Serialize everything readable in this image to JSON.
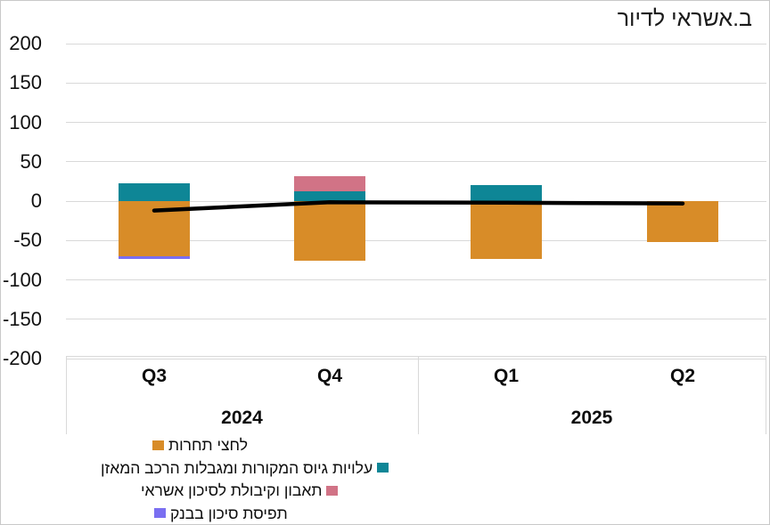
{
  "chart_data": {
    "type": "bar",
    "stacked": true,
    "title": "ב.אשראי לדיור",
    "categories": [
      "Q3",
      "Q4",
      "Q1",
      "Q2"
    ],
    "year_groups": [
      {
        "label": "2024",
        "categories": [
          "Q3",
          "Q4"
        ]
      },
      {
        "label": "2025",
        "categories": [
          "Q1",
          "Q2"
        ]
      }
    ],
    "ylim": [
      -200,
      200
    ],
    "ytick_step": 50,
    "yticks": [
      200,
      150,
      100,
      50,
      0,
      -50,
      -100,
      -150,
      -200
    ],
    "grid": true,
    "legend_position": "bottom-left",
    "series": [
      {
        "name": "לחצי תחרות",
        "color": "#D88C28",
        "values": [
          -70,
          -76,
          -74,
          -52
        ]
      },
      {
        "name": "עלויות גיוס המקורות ומגבלות הרכב המאזן",
        "color": "#0E8696",
        "values": [
          23,
          12,
          20,
          0
        ]
      },
      {
        "name": "תאבון וקיבולת לסיכון אשראי",
        "color": "#D17386",
        "values": [
          0,
          20,
          0,
          0
        ]
      },
      {
        "name": "תפיסת סיכון בבנק",
        "color": "#7A6FF1",
        "values": [
          -3.5,
          0,
          0,
          0
        ]
      }
    ],
    "line_series": {
      "name": "net-total-line",
      "color": "#000000",
      "values": [
        -12,
        -1.5,
        -2,
        -3
      ]
    }
  },
  "ui_colors": {
    "gridline": "#d9d9d9",
    "axis_border": "#d9d9d9",
    "text": "#0d0d0d"
  }
}
